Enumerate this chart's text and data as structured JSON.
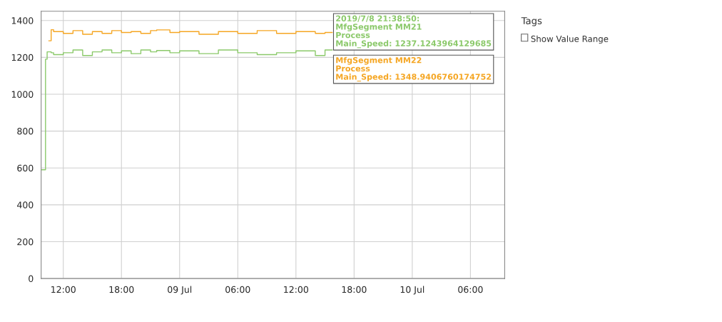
{
  "chart_data": {
    "type": "step",
    "x": [
      "2019-07-08T09:43",
      "2019-07-08T10:10",
      "2019-07-08T10:20",
      "2019-07-08T10:30",
      "2019-07-08T10:45",
      "2019-07-08T11:00",
      "2019-07-08T12:00",
      "2019-07-08T13:00",
      "2019-07-08T14:00",
      "2019-07-08T15:00",
      "2019-07-08T16:00",
      "2019-07-08T17:00",
      "2019-07-08T18:00",
      "2019-07-08T19:00",
      "2019-07-08T20:00",
      "2019-07-08T21:00",
      "2019-07-08T21:38",
      "2019-07-08T23:00",
      "2019-07-09T00:00",
      "2019-07-09T02:00",
      "2019-07-09T04:00",
      "2019-07-09T06:00",
      "2019-07-09T08:00",
      "2019-07-09T10:00",
      "2019-07-09T12:00",
      "2019-07-09T14:00",
      "2019-07-09T15:00",
      "2019-07-09T15:45"
    ],
    "series": [
      {
        "color": "#8bc96a",
        "values": [
          590,
          1190,
          1230,
          1230,
          1225,
          1215,
          1225,
          1240,
          1210,
          1230,
          1240,
          1225,
          1235,
          1220,
          1240,
          1230,
          1237,
          1225,
          1235,
          1220,
          1240,
          1225,
          1215,
          1225,
          1235,
          1210,
          1240,
          1240
        ]
      },
      {
        "color": "#f5a623",
        "values": [
          null,
          null,
          null,
          1290,
          1350,
          1340,
          1330,
          1345,
          1325,
          1340,
          1330,
          1345,
          1335,
          1340,
          1330,
          1345,
          1349,
          1335,
          1340,
          1325,
          1340,
          1330,
          1345,
          1330,
          1340,
          1330,
          1335,
          1335
        ]
      }
    ],
    "xlim": [
      "2019-07-08T09:43",
      "2019-07-10T09:32"
    ],
    "xticks": [
      {
        "value": "2019-07-08T12:00",
        "label": "12:00"
      },
      {
        "value": "2019-07-08T18:00",
        "label": "18:00"
      },
      {
        "value": "2019-07-09T00:00",
        "label": "09 Jul"
      },
      {
        "value": "2019-07-09T06:00",
        "label": "06:00"
      },
      {
        "value": "2019-07-09T12:00",
        "label": "12:00"
      },
      {
        "value": "2019-07-09T18:00",
        "label": "18:00"
      },
      {
        "value": "2019-07-10T00:00",
        "label": "10 Jul"
      },
      {
        "value": "2019-07-10T06:00",
        "label": "06:00"
      }
    ],
    "ylim": [
      0,
      1450
    ],
    "yticks": [
      0,
      200,
      400,
      600,
      800,
      1000,
      1200,
      1400
    ],
    "grid": true,
    "legend": false,
    "marker": "none",
    "line_style": "solid",
    "annotations": [
      "2019/7/8 21:38:50:\nMfgSegment MM21\nProcess\nMain_Speed: 1237.1243964129685",
      "MfgSegment MM22\nProcess\nMain_Speed: 1348.9406760174752",
      "Tags",
      "Show Value Range"
    ]
  }
}
